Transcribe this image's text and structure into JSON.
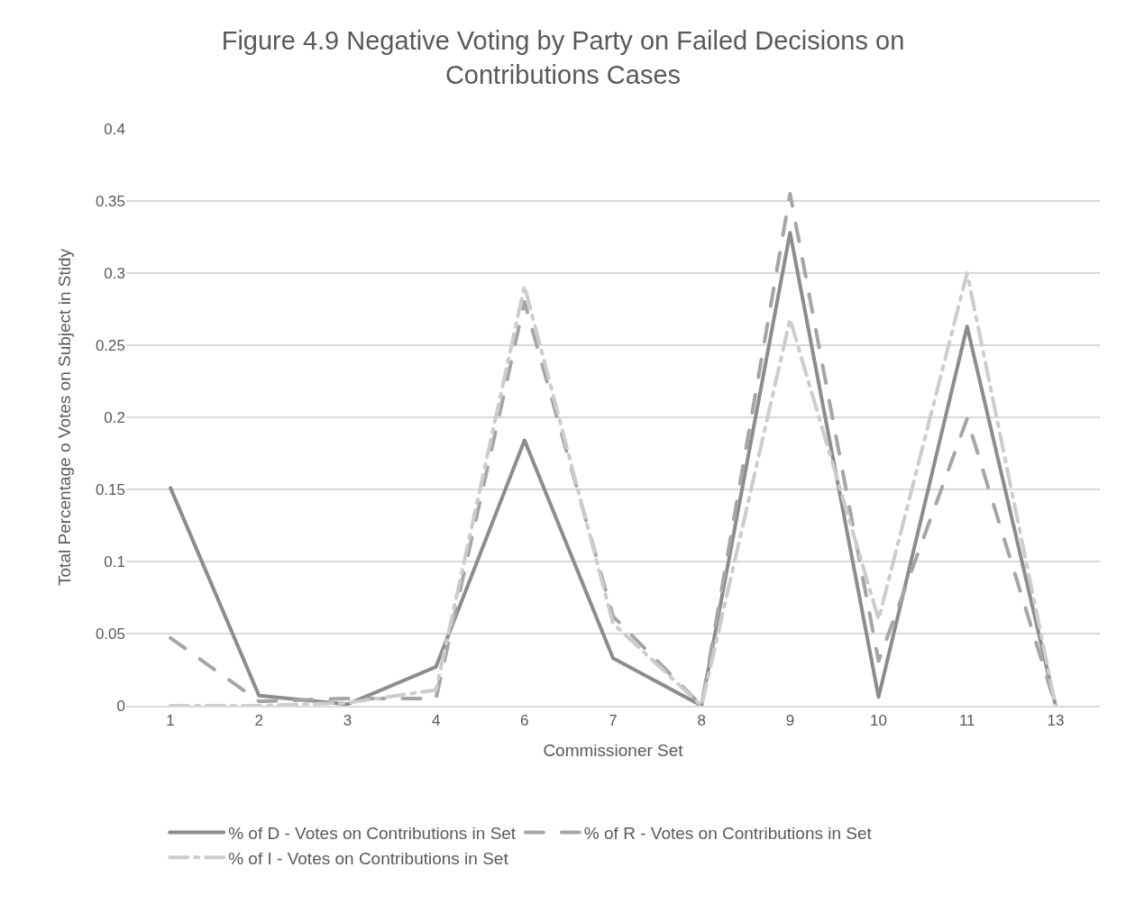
{
  "chart_data": {
    "type": "line",
    "title": "Figure 4.9 Negative Voting by Party on Failed Decisions on Contributions Cases",
    "xlabel": "Commissioner Set",
    "ylabel": "Total Percentage o Votes on Subject in Stidy",
    "categories": [
      "1",
      "2",
      "3",
      "4",
      "6",
      "7",
      "8",
      "9",
      "10",
      "11",
      "13"
    ],
    "series": [
      {
        "name": "% of D - Votes on Contributions in Set",
        "color": "#8c8c8c",
        "line_style": "solid",
        "values": [
          0.151,
          0.007,
          0.001,
          0.027,
          0.184,
          0.033,
          0,
          0.328,
          0.006,
          0.263,
          0
        ]
      },
      {
        "name": "% of R - Votes on Contributions in Set",
        "color": "#a5a5a5",
        "line_style": "dashed",
        "values": [
          0.047,
          0.003,
          0.005,
          0.005,
          0.28,
          0.062,
          0,
          0.355,
          0.031,
          0.199,
          0
        ]
      },
      {
        "name": "% of I - Votes on Contributions in Set",
        "color": "#cccccc",
        "line_style": "dashdot",
        "values": [
          0,
          0,
          0.002,
          0.011,
          0.291,
          0.057,
          0,
          0.268,
          0.06,
          0.3,
          0
        ]
      }
    ],
    "ylim": [
      0,
      0.4
    ],
    "yticks": [
      0,
      0.05,
      0.1,
      0.15,
      0.2,
      0.25,
      0.3,
      0.35,
      0.4
    ],
    "grid": "y",
    "legend": "bottom",
    "marker": "none"
  }
}
